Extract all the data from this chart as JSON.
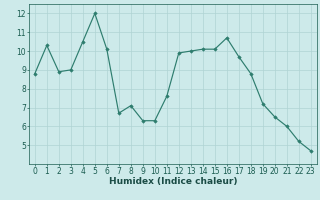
{
  "x": [
    0,
    1,
    2,
    3,
    4,
    5,
    6,
    7,
    8,
    9,
    10,
    11,
    12,
    13,
    14,
    15,
    16,
    17,
    18,
    19,
    20,
    21,
    22,
    23
  ],
  "y": [
    8.8,
    10.3,
    8.9,
    9.0,
    10.5,
    12.0,
    10.1,
    6.7,
    7.1,
    6.3,
    6.3,
    7.6,
    9.9,
    10.0,
    10.1,
    10.1,
    10.7,
    9.7,
    8.8,
    7.2,
    6.5,
    6.0,
    5.2,
    4.7
  ],
  "xlabel": "Humidex (Indice chaleur)",
  "xlim": [
    -0.5,
    23.5
  ],
  "ylim": [
    4.0,
    12.5
  ],
  "yticks": [
    5,
    6,
    7,
    8,
    9,
    10,
    11,
    12
  ],
  "xticks": [
    0,
    1,
    2,
    3,
    4,
    5,
    6,
    7,
    8,
    9,
    10,
    11,
    12,
    13,
    14,
    15,
    16,
    17,
    18,
    19,
    20,
    21,
    22,
    23
  ],
  "line_color": "#2e7d6e",
  "marker": "D",
  "marker_size": 1.8,
  "bg_color": "#cdeaea",
  "grid_color": "#b0d4d4",
  "tick_label_color": "#1a5c50",
  "xlabel_color": "#1a4c45",
  "tick_fontsize": 5.5,
  "xlabel_fontsize": 6.5,
  "linewidth": 0.85
}
